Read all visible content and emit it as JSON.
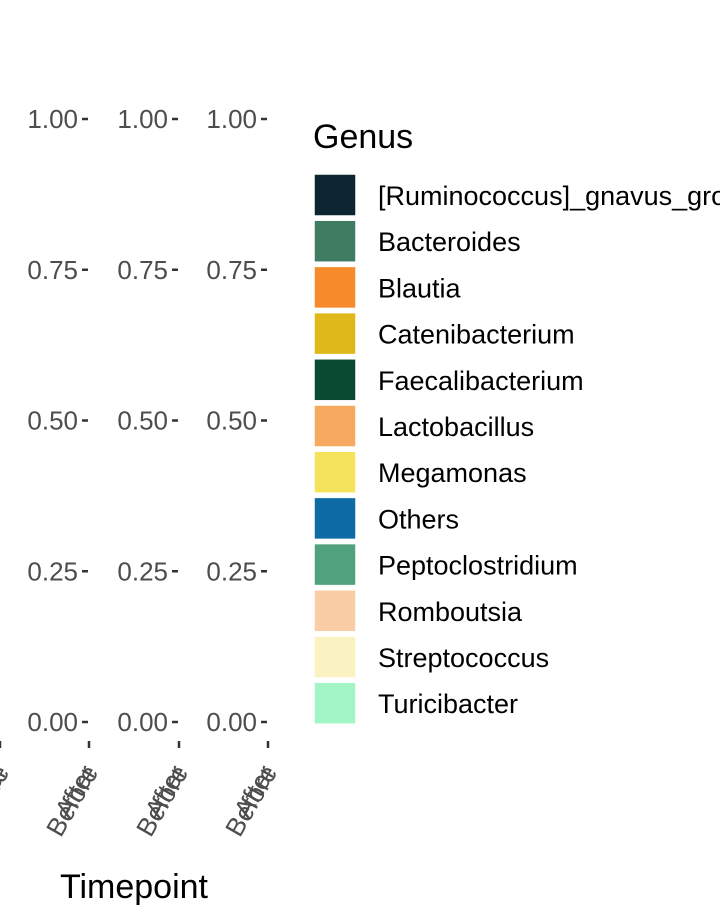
{
  "chart_data": {
    "type": "bar",
    "facets": 3,
    "categories": [
      "After",
      "Before"
    ],
    "y_ticks": [
      "0.00",
      "0.25",
      "0.50",
      "0.75",
      "1.00"
    ],
    "ylim": [
      0,
      1
    ],
    "xlabel": "Timepoint",
    "ylabel": "",
    "title": "",
    "legend": {
      "title": "Genus",
      "placement": "right",
      "entries": [
        {
          "name": "[Ruminococcus]_gnavus_group",
          "color": "#0b2630"
        },
        {
          "name": "Bacteroides",
          "color": "#3e7d62"
        },
        {
          "name": "Blautia",
          "color": "#f68b2b"
        },
        {
          "name": "Catenibacterium",
          "color": "#dfb819"
        },
        {
          "name": "Faecalibacterium",
          "color": "#0a4a32"
        },
        {
          "name": "Lactobacillus",
          "color": "#f7aa5f"
        },
        {
          "name": "Megamonas",
          "color": "#f5e35c"
        },
        {
          "name": "Others",
          "color": "#0e6ba6"
        },
        {
          "name": "Peptoclostridium",
          "color": "#4fa27d"
        },
        {
          "name": "Romboutsia",
          "color": "#f9cda6"
        },
        {
          "name": "Streptococcus",
          "color": "#faf2c1"
        },
        {
          "name": "Turicibacter",
          "color": "#a1f5c6"
        }
      ]
    }
  }
}
